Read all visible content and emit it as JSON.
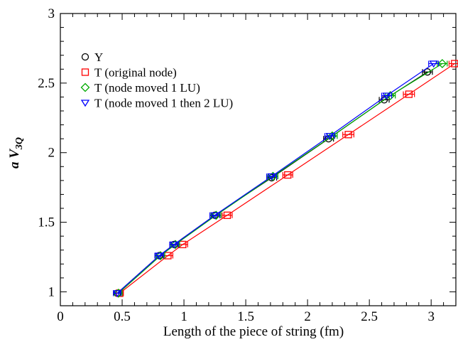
{
  "chart_data": {
    "type": "line",
    "xlabel": "Length of the piece of string (fm)",
    "ylabel_main": "a V",
    "ylabel_sub": "3Q",
    "xlim": [
      0,
      3.2
    ],
    "ylim": [
      0.9,
      3.0
    ],
    "x_ticks": [
      0,
      0.5,
      1,
      1.5,
      2,
      2.5,
      3
    ],
    "x_tick_labels": [
      "0",
      "0.5",
      "1",
      "1.5",
      "2",
      "2.5",
      "3"
    ],
    "y_ticks": [
      1,
      1.5,
      2,
      2.5,
      3
    ],
    "y_tick_labels": [
      "1",
      "1.5",
      "2",
      "2.5",
      "3"
    ],
    "legend_position": "top-left",
    "series": [
      {
        "name": "Y",
        "color": "#000000",
        "marker": "circle",
        "x": [
          0.46,
          0.8,
          0.92,
          1.25,
          1.71,
          2.17,
          2.62,
          2.97
        ],
        "y": [
          0.99,
          1.26,
          1.34,
          1.55,
          1.82,
          2.1,
          2.38,
          2.58
        ],
        "xerr": [
          0.03,
          0.035,
          0.035,
          0.04,
          0.04,
          0.04,
          0.04,
          0.04
        ]
      },
      {
        "name": "T (original node)",
        "color": "#ff0000",
        "marker": "square",
        "x": [
          0.48,
          0.87,
          0.99,
          1.35,
          1.84,
          2.33,
          2.82,
          3.19
        ],
        "y": [
          0.99,
          1.26,
          1.34,
          1.55,
          1.84,
          2.13,
          2.42,
          2.64
        ],
        "xerr": [
          0.03,
          0.04,
          0.04,
          0.04,
          0.04,
          0.045,
          0.045,
          0.045
        ]
      },
      {
        "name": "T (node moved 1 LU)",
        "color": "#00aa00",
        "marker": "diamond",
        "x": [
          0.47,
          0.81,
          0.93,
          1.26,
          1.72,
          2.2,
          2.67,
          3.09
        ],
        "y": [
          0.99,
          1.26,
          1.34,
          1.55,
          1.83,
          2.12,
          2.41,
          2.64
        ],
        "xerr": [
          0.03,
          0.035,
          0.035,
          0.04,
          0.04,
          0.04,
          0.04,
          0.04
        ]
      },
      {
        "name": "T (node moved 1 then 2 LU)",
        "color": "#0000ff",
        "marker": "triangle-down",
        "x": [
          0.46,
          0.8,
          0.92,
          1.25,
          1.71,
          2.18,
          2.64,
          3.02
        ],
        "y": [
          0.99,
          1.26,
          1.34,
          1.55,
          1.83,
          2.12,
          2.41,
          2.64
        ],
        "xerr": [
          0.03,
          0.035,
          0.035,
          0.04,
          0.04,
          0.04,
          0.04,
          0.04
        ]
      }
    ]
  }
}
